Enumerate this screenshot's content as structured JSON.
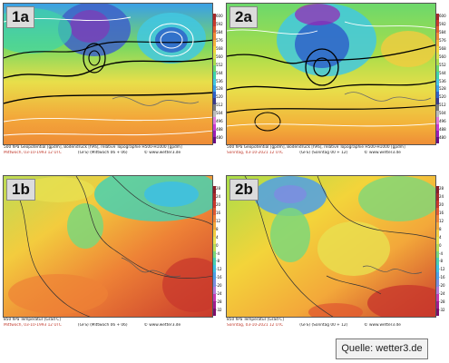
{
  "colors": {
    "z500_scale": [
      "#6a0d83",
      "#9b1fb5",
      "#c93bd1",
      "#e07ad9",
      "#bbbbbb",
      "#7a7a7a",
      "#3b3b8c",
      "#2f63c9",
      "#3aa0e6",
      "#42c8e0",
      "#3fd4a8",
      "#6cd86b",
      "#a9dd4a",
      "#d8e04a",
      "#f2d43a",
      "#f3b23a",
      "#ee8a36",
      "#e05f30",
      "#c83a2c",
      "#a52a2a"
    ],
    "t850_scale": [
      "#7a0f6b",
      "#a01d8e",
      "#c43ab0",
      "#b47ad9",
      "#7b8ee0",
      "#4fa0e6",
      "#3fc0e0",
      "#49d0b0",
      "#7dd77a",
      "#bcdc55",
      "#e8e050",
      "#f3cc3e",
      "#f3a83a",
      "#ee8236",
      "#e05a30",
      "#c8382c",
      "#a82a2a",
      "#8a1f2a"
    ],
    "date_red": "#c0392b"
  },
  "panels": [
    {
      "label": "1a",
      "type": "geopotential",
      "scale_ticks": [
        "600",
        "592",
        "584",
        "576",
        "568",
        "560",
        "552",
        "544",
        "536",
        "528",
        "520",
        "512",
        "504",
        "496",
        "488",
        "480"
      ],
      "caption_line1": "500 hPa Geopotential [gpdm], Bodendruck [hPa], relative Topographie H500-H1000 [gpdm]",
      "caption_date": "Mittwoch, 03-10-1993  12 UTC",
      "caption_run": "(GFS)  (Mittwoch 06 + 06)",
      "caption_site": "© www.wetter3.de"
    },
    {
      "label": "2a",
      "type": "geopotential",
      "scale_ticks": [
        "600",
        "592",
        "584",
        "576",
        "568",
        "560",
        "552",
        "544",
        "536",
        "528",
        "520",
        "512",
        "504",
        "496",
        "488",
        "480"
      ],
      "caption_line1": "500 hPa Geopotential [gpdm], Bodendruck [hPa], relative Topographie H500-H1000 [gpdm]",
      "caption_date": "Sonntag, 03-10-2021  12 UTC",
      "caption_run": "(GFS)  (Sonntag 00 + 12)",
      "caption_site": "© www.wetter3.de"
    },
    {
      "label": "1b",
      "type": "temperature",
      "scale_ticks": [
        "28",
        "24",
        "20",
        "16",
        "12",
        "8",
        "4",
        "0",
        "-4",
        "-8",
        "-12",
        "-16",
        "-20",
        "-24",
        "-28",
        "-32"
      ],
      "caption_line1": "850 hPa Temperatur [Grad C]",
      "caption_date": "Mittwoch, 03-10-1993  12 UTC",
      "caption_run": "(GFS)  (Mittwoch 06 + 06)",
      "caption_site": "© www.wetter3.de"
    },
    {
      "label": "2b",
      "type": "temperature",
      "scale_ticks": [
        "28",
        "24",
        "20",
        "16",
        "12",
        "8",
        "4",
        "0",
        "-4",
        "-8",
        "-12",
        "-16",
        "-20",
        "-24",
        "-28",
        "-32"
      ],
      "caption_line1": "850 hPa Temperatur [Grad C]",
      "caption_date": "Sonntag, 03-10-2021  12 UTC",
      "caption_run": "(GFS)  (Sonntag 00 + 12)",
      "caption_site": "© www.wetter3.de"
    }
  ],
  "source_label": "Quelle: wetter3.de"
}
